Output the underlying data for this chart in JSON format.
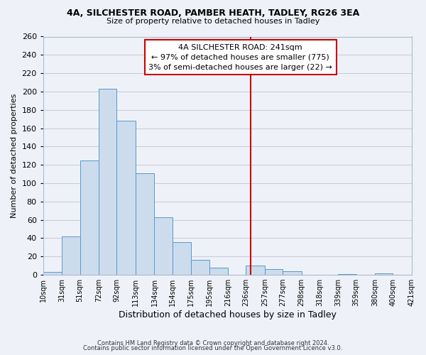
{
  "title": "4A, SILCHESTER ROAD, PAMBER HEATH, TADLEY, RG26 3EA",
  "subtitle": "Size of property relative to detached houses in Tadley",
  "xlabel": "Distribution of detached houses by size in Tadley",
  "ylabel": "Number of detached properties",
  "bar_color": "#ccdcec",
  "bar_edge_color": "#5599cc",
  "bin_edges": [
    10,
    31,
    51,
    72,
    92,
    113,
    134,
    154,
    175,
    195,
    216,
    236,
    257,
    277,
    298,
    318,
    339,
    359,
    380,
    400,
    421
  ],
  "bar_heights": [
    3,
    42,
    125,
    203,
    168,
    111,
    63,
    36,
    16,
    8,
    0,
    10,
    6,
    4,
    0,
    0,
    1,
    0,
    2,
    0
  ],
  "tick_labels": [
    "10sqm",
    "31sqm",
    "51sqm",
    "72sqm",
    "92sqm",
    "113sqm",
    "134sqm",
    "154sqm",
    "175sqm",
    "195sqm",
    "216sqm",
    "236sqm",
    "257sqm",
    "277sqm",
    "298sqm",
    "318sqm",
    "339sqm",
    "359sqm",
    "380sqm",
    "400sqm",
    "421sqm"
  ],
  "vline_x": 241,
  "vline_color": "#cc0000",
  "annotation_title": "4A SILCHESTER ROAD: 241sqm",
  "annotation_line1": "← 97% of detached houses are smaller (775)",
  "annotation_line2": "3% of semi-detached houses are larger (22) →",
  "annotation_box_facecolor": "#ffffff",
  "annotation_box_edgecolor": "#cc0000",
  "ylim": [
    0,
    260
  ],
  "yticks": [
    0,
    20,
    40,
    60,
    80,
    100,
    120,
    140,
    160,
    180,
    200,
    220,
    240,
    260
  ],
  "footnote1": "Contains HM Land Registry data © Crown copyright and database right 2024.",
  "footnote2": "Contains public sector information licensed under the Open Government Licence v3.0.",
  "grid_color": "#ccccdd",
  "background_color": "#eef2f8",
  "spine_color": "#aabbcc"
}
